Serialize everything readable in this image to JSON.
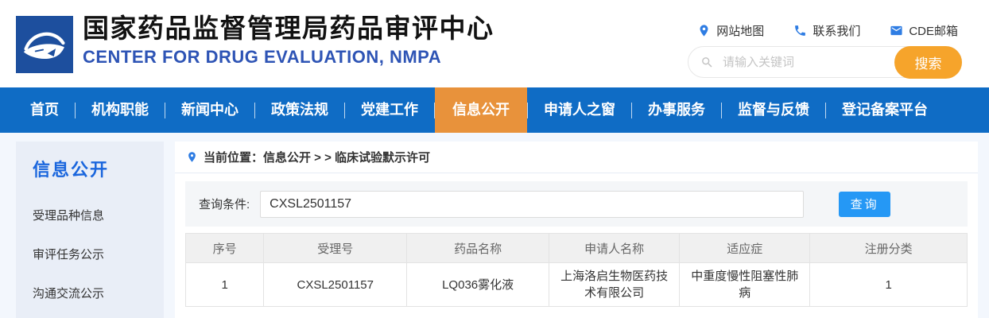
{
  "header": {
    "title": "国家药品监督管理局药品审评中心",
    "subtitle": "CENTER FOR DRUG EVALUATION, NMPA",
    "logo_icon": "fish-swoosh-icon",
    "quick_links": [
      {
        "name": "sitemap",
        "label": "网站地图",
        "icon": "location-pin-icon"
      },
      {
        "name": "contact",
        "label": "联系我们",
        "icon": "phone-icon"
      },
      {
        "name": "cde-mail",
        "label": "CDE邮箱",
        "icon": "mail-icon"
      }
    ],
    "search": {
      "placeholder": "请输入关键词",
      "button": "搜索",
      "icon": "search-icon"
    }
  },
  "nav": {
    "items": [
      {
        "name": "home",
        "label": "首页",
        "active": false
      },
      {
        "name": "org-functions",
        "label": "机构职能",
        "active": false
      },
      {
        "name": "news-center",
        "label": "新闻中心",
        "active": false
      },
      {
        "name": "policies",
        "label": "政策法规",
        "active": false
      },
      {
        "name": "party-building",
        "label": "党建工作",
        "active": false
      },
      {
        "name": "info-disclosure",
        "label": "信息公开",
        "active": true
      },
      {
        "name": "applicant-window",
        "label": "申请人之窗",
        "active": false
      },
      {
        "name": "services",
        "label": "办事服务",
        "active": false
      },
      {
        "name": "supervision-feedback",
        "label": "监督与反馈",
        "active": false
      },
      {
        "name": "registration-platform",
        "label": "登记备案平台",
        "active": false
      }
    ]
  },
  "sidebar": {
    "title": "信息公开",
    "items": [
      "受理品种信息",
      "审评任务公示",
      "沟通交流公示"
    ]
  },
  "main": {
    "breadcrumb": {
      "icon": "location-pin-icon",
      "text": "当前位置：信息公开 > > 临床试验默示许可"
    },
    "query": {
      "label": "查询条件:",
      "value": "CXSL2501157",
      "button": "查询"
    },
    "table": {
      "headers": [
        "序号",
        "受理号",
        "药品名称",
        "申请人名称",
        "适应症",
        "注册分类"
      ],
      "rows": [
        [
          "1",
          "CXSL2501157",
          "LQ036雾化液",
          "上海洛启生物医药技术有限公司",
          "中重度慢性阻塞性肺病",
          "1"
        ]
      ]
    }
  },
  "colors": {
    "nav_blue": "#0f6cc5",
    "nav_orange": "#e8923b",
    "search_orange": "#f6a42b",
    "query_blue": "#2598f5",
    "subtitle_blue": "#2e54b5",
    "icon_blue": "#2f7de3",
    "sidebar_blue": "#1a66dd",
    "logo_bg": "#1d4f9e"
  }
}
